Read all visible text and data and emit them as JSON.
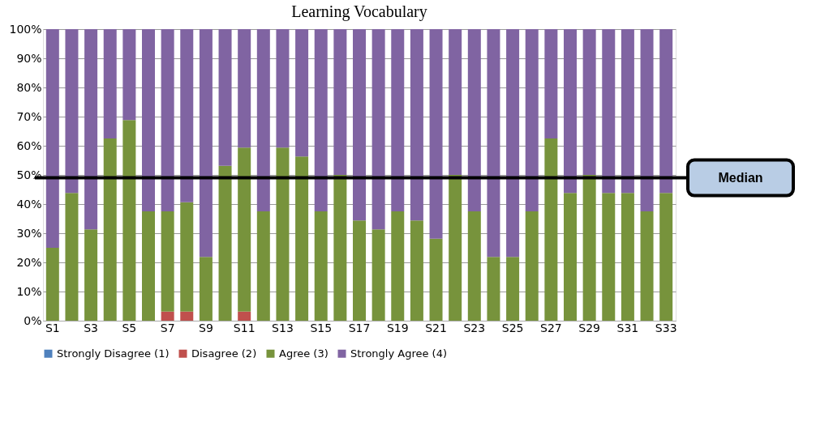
{
  "chart_data": {
    "type": "bar",
    "stacked": true,
    "title": "Learning Vocabulary",
    "categories": [
      "S1",
      null,
      "S3",
      null,
      "S5",
      null,
      "S7",
      null,
      "S9",
      null,
      "S11",
      null,
      "S13",
      null,
      "S15",
      null,
      "S17",
      null,
      "S19",
      null,
      "S21",
      null,
      "S23",
      null,
      "S25",
      null,
      "S27",
      null,
      "S29",
      null,
      "S31",
      null,
      "S33"
    ],
    "series": [
      {
        "name": "Strongly Disagree (1)",
        "color": "#4f81bd",
        "values": [
          0,
          0,
          0,
          0,
          0,
          0,
          0,
          0,
          0,
          0,
          0,
          0,
          0,
          0,
          0,
          0,
          0,
          0,
          0,
          0,
          0,
          0,
          0,
          0,
          0,
          0,
          0,
          0,
          0,
          0,
          0,
          0,
          0
        ]
      },
      {
        "name": "Disagree (2)",
        "color": "#c0504d",
        "values": [
          0,
          0,
          0,
          0,
          0,
          0,
          3.1,
          3.1,
          0,
          0,
          3.1,
          0,
          0,
          0,
          0,
          0,
          0,
          0,
          0,
          0,
          0,
          0,
          0,
          0,
          0,
          0,
          0,
          0,
          0,
          0,
          0,
          0,
          0
        ]
      },
      {
        "name": "Agree (3)",
        "color": "#77933c",
        "values": [
          25,
          43.8,
          31.3,
          62.5,
          68.8,
          37.5,
          34.4,
          37.5,
          21.9,
          53.1,
          56.3,
          37.5,
          59.4,
          56.3,
          37.5,
          50,
          34.4,
          31.3,
          37.5,
          34.4,
          28.1,
          50,
          37.5,
          21.9,
          21.9,
          37.5,
          62.5,
          43.8,
          50,
          43.8,
          43.8,
          37.5,
          43.8
        ]
      },
      {
        "name": "Strongly Agree (4)",
        "color": "#8064a2",
        "values": [
          75,
          56.2,
          68.7,
          37.5,
          31.2,
          62.5,
          62.5,
          59.4,
          78.1,
          46.9,
          40.6,
          62.5,
          40.6,
          43.7,
          62.5,
          50,
          65.6,
          68.7,
          62.5,
          65.6,
          71.9,
          50,
          62.5,
          78.1,
          78.1,
          62.5,
          37.5,
          56.2,
          50,
          56.2,
          56.2,
          62.5,
          56.2
        ]
      }
    ],
    "ylim": [
      0,
      100
    ],
    "yticks": [
      {
        "value": 0,
        "label": "0%"
      },
      {
        "value": 10,
        "label": "10%"
      },
      {
        "value": 20,
        "label": "20%"
      },
      {
        "value": 30,
        "label": "30%"
      },
      {
        "value": 40,
        "label": "40%"
      },
      {
        "value": 50,
        "label": "50%"
      },
      {
        "value": 60,
        "label": "60%"
      },
      {
        "value": 70,
        "label": "70%"
      },
      {
        "value": 80,
        "label": "80%"
      },
      {
        "value": 90,
        "label": "90%"
      },
      {
        "value": 100,
        "label": "100%"
      }
    ],
    "grid": "y",
    "legend": "bottom",
    "ref_lines": [
      {
        "axis": "y",
        "value": 49,
        "label": "Median",
        "color": "#000000"
      }
    ]
  }
}
